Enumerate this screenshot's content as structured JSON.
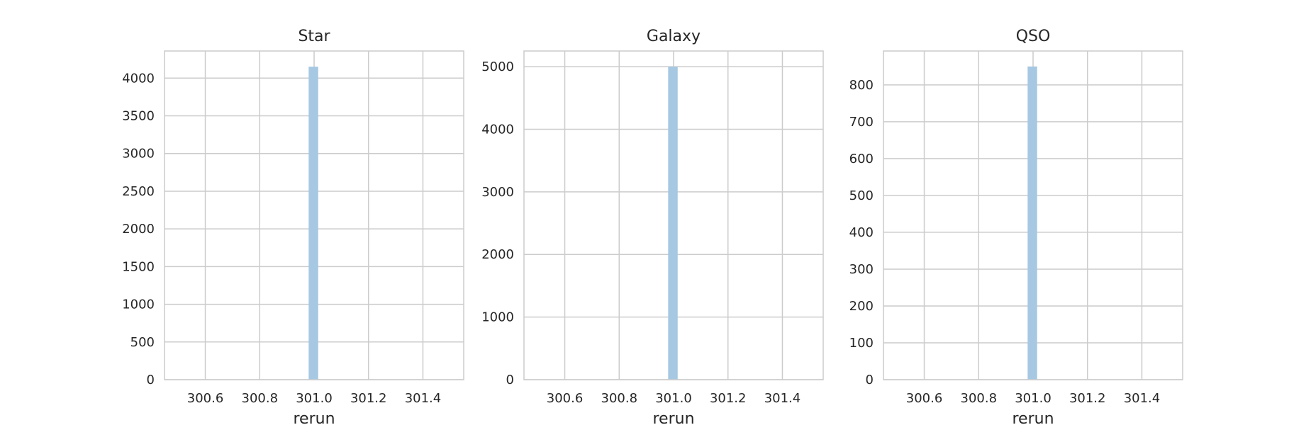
{
  "chart_data": [
    {
      "type": "bar",
      "title": "Star",
      "xlabel": "rerun",
      "ylabel": "",
      "xlim": [
        300.45,
        301.55
      ],
      "ylim": [
        0,
        4360
      ],
      "xticks": [
        300.6,
        300.8,
        301.0,
        301.2,
        301.4
      ],
      "xtick_labels": [
        "300.6",
        "300.8",
        "301.0",
        "301.2",
        "301.4"
      ],
      "yticks": [
        0,
        500,
        1000,
        1500,
        2000,
        2500,
        3000,
        3500,
        4000
      ],
      "ytick_labels": [
        "0",
        "500",
        "1000",
        "1500",
        "2000",
        "2500",
        "3000",
        "3500",
        "4000"
      ],
      "bins": [
        {
          "x0": 300.98,
          "x1": 301.015,
          "count": 4152
        }
      ],
      "grid": true,
      "bar_color": "#a6c8e2"
    },
    {
      "type": "bar",
      "title": "Galaxy",
      "xlabel": "rerun",
      "ylabel": "",
      "xlim": [
        300.45,
        301.55
      ],
      "ylim": [
        0,
        5250
      ],
      "xticks": [
        300.6,
        300.8,
        301.0,
        301.2,
        301.4
      ],
      "xtick_labels": [
        "300.6",
        "300.8",
        "301.0",
        "301.2",
        "301.4"
      ],
      "yticks": [
        0,
        1000,
        2000,
        3000,
        4000,
        5000
      ],
      "ytick_labels": [
        "0",
        "1000",
        "2000",
        "3000",
        "4000",
        "5000"
      ],
      "bins": [
        {
          "x0": 300.98,
          "x1": 301.015,
          "count": 4998
        }
      ],
      "grid": true,
      "bar_color": "#a6c8e2"
    },
    {
      "type": "bar",
      "title": "QSO",
      "xlabel": "rerun",
      "ylabel": "",
      "xlim": [
        300.45,
        301.55
      ],
      "ylim": [
        0,
        892
      ],
      "xticks": [
        300.6,
        300.8,
        301.0,
        301.2,
        301.4
      ],
      "xtick_labels": [
        "300.6",
        "300.8",
        "301.0",
        "301.2",
        "301.4"
      ],
      "yticks": [
        0,
        100,
        200,
        300,
        400,
        500,
        600,
        700,
        800
      ],
      "ytick_labels": [
        "0",
        "100",
        "200",
        "300",
        "400",
        "500",
        "600",
        "700",
        "800"
      ],
      "bins": [
        {
          "x0": 300.98,
          "x1": 301.015,
          "count": 850
        }
      ],
      "grid": true,
      "bar_color": "#a6c8e2"
    }
  ]
}
